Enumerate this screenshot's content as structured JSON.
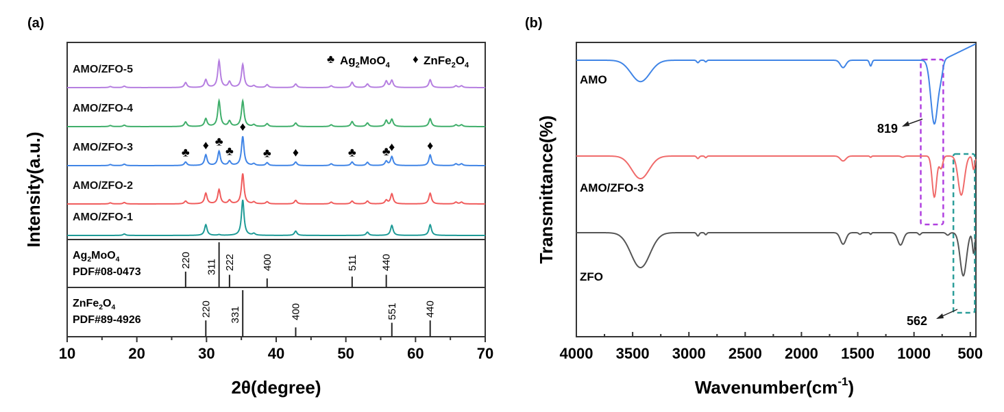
{
  "chart_data": [
    {
      "panel_label": "(a)",
      "type": "line",
      "title": "",
      "xlabel": "2θ(degree)",
      "ylabel": "Intensity(a.u.)",
      "xlim": [
        10,
        70
      ],
      "xticks": [
        10,
        20,
        30,
        40,
        50,
        60,
        70
      ],
      "grid": false,
      "legend": {
        "placement": "top-right",
        "entries": [
          {
            "symbol": "♣",
            "label_parts": [
              "Ag",
              "2",
              "MoO",
              "4"
            ],
            "phase": "Ag2MoO4"
          },
          {
            "symbol": "♦",
            "label_parts": [
              "ZnFe",
              "2",
              "O",
              "4"
            ],
            "phase": "ZnFe2O4"
          }
        ]
      },
      "series": [
        {
          "name": "AMO/ZFO-5",
          "color": "#b57ee0",
          "peaks": [
            [
              16.2,
              0.03
            ],
            [
              18.2,
              0.04
            ],
            [
              27.0,
              0.14
            ],
            [
              29.9,
              0.22
            ],
            [
              31.8,
              0.75
            ],
            [
              33.3,
              0.16
            ],
            [
              35.2,
              0.65
            ],
            [
              36.8,
              0.05
            ],
            [
              38.7,
              0.08
            ],
            [
              42.8,
              0.1
            ],
            [
              47.9,
              0.05
            ],
            [
              50.9,
              0.15
            ],
            [
              53.1,
              0.1
            ],
            [
              55.8,
              0.18
            ],
            [
              56.6,
              0.2
            ],
            [
              62.1,
              0.22
            ],
            [
              65.8,
              0.05
            ],
            [
              66.6,
              0.05
            ]
          ]
        },
        {
          "name": "AMO/ZFO-4",
          "color": "#3fae6a",
          "peaks": [
            [
              16.2,
              0.03
            ],
            [
              18.2,
              0.04
            ],
            [
              27.0,
              0.13
            ],
            [
              29.9,
              0.22
            ],
            [
              31.8,
              0.72
            ],
            [
              33.3,
              0.15
            ],
            [
              35.2,
              0.72
            ],
            [
              36.8,
              0.05
            ],
            [
              38.7,
              0.08
            ],
            [
              42.8,
              0.1
            ],
            [
              47.9,
              0.05
            ],
            [
              50.9,
              0.14
            ],
            [
              53.1,
              0.1
            ],
            [
              55.8,
              0.17
            ],
            [
              56.6,
              0.2
            ],
            [
              62.1,
              0.22
            ],
            [
              65.8,
              0.05
            ],
            [
              66.6,
              0.05
            ]
          ]
        },
        {
          "name": "AMO/ZFO-3",
          "color": "#3f84e6",
          "peaks": [
            [
              16.2,
              0.03
            ],
            [
              18.2,
              0.04
            ],
            [
              27.0,
              0.1
            ],
            [
              29.9,
              0.3
            ],
            [
              31.8,
              0.4
            ],
            [
              33.3,
              0.12
            ],
            [
              35.2,
              0.82
            ],
            [
              36.8,
              0.05
            ],
            [
              38.7,
              0.08
            ],
            [
              42.8,
              0.1
            ],
            [
              47.9,
              0.05
            ],
            [
              50.9,
              0.1
            ],
            [
              53.1,
              0.09
            ],
            [
              55.8,
              0.12
            ],
            [
              56.6,
              0.25
            ],
            [
              62.1,
              0.3
            ],
            [
              65.8,
              0.05
            ],
            [
              66.6,
              0.05
            ]
          ]
        },
        {
          "name": "AMO/ZFO-2",
          "color": "#f05b5b",
          "peaks": [
            [
              16.2,
              0.03
            ],
            [
              18.2,
              0.04
            ],
            [
              27.0,
              0.08
            ],
            [
              29.9,
              0.3
            ],
            [
              31.8,
              0.4
            ],
            [
              33.3,
              0.1
            ],
            [
              35.2,
              0.85
            ],
            [
              36.8,
              0.05
            ],
            [
              38.7,
              0.06
            ],
            [
              42.8,
              0.1
            ],
            [
              47.9,
              0.05
            ],
            [
              50.9,
              0.08
            ],
            [
              53.1,
              0.08
            ],
            [
              55.8,
              0.1
            ],
            [
              56.6,
              0.28
            ],
            [
              62.1,
              0.3
            ],
            [
              65.8,
              0.05
            ],
            [
              66.6,
              0.05
            ]
          ]
        },
        {
          "name": "AMO/ZFO-1",
          "color": "#1d9a96",
          "peaks": [
            [
              18.2,
              0.04
            ],
            [
              29.9,
              0.3
            ],
            [
              31.8,
              0.02
            ],
            [
              35.2,
              1.0
            ],
            [
              36.8,
              0.05
            ],
            [
              42.8,
              0.12
            ],
            [
              53.1,
              0.09
            ],
            [
              56.6,
              0.28
            ],
            [
              62.1,
              0.3
            ]
          ]
        }
      ],
      "markers": [
        {
          "symbol": "♣",
          "x": 27.0,
          "phase": "Ag2MoO4"
        },
        {
          "symbol": "♦",
          "x": 29.9,
          "phase": "ZnFe2O4"
        },
        {
          "symbol": "♣",
          "x": 31.8,
          "phase": "Ag2MoO4"
        },
        {
          "symbol": "♣",
          "x": 33.3,
          "phase": "Ag2MoO4"
        },
        {
          "symbol": "♦",
          "x": 35.2,
          "phase": "ZnFe2O4"
        },
        {
          "symbol": "♣",
          "x": 38.7,
          "phase": "Ag2MoO4"
        },
        {
          "symbol": "♦",
          "x": 42.8,
          "phase": "ZnFe2O4"
        },
        {
          "symbol": "♣",
          "x": 50.9,
          "phase": "Ag2MoO4"
        },
        {
          "symbol": "♣",
          "x": 55.8,
          "phase": "Ag2MoO4"
        },
        {
          "symbol": "♦",
          "x": 56.6,
          "phase": "ZnFe2O4"
        },
        {
          "symbol": "♦",
          "x": 62.1,
          "phase": "ZnFe2O4"
        }
      ],
      "references": [
        {
          "name_parts": [
            "Ag",
            "2",
            "MoO",
            "4"
          ],
          "pdf": "PDF#08-0473",
          "lines": [
            {
              "x": 27.0,
              "hkl": "220",
              "rel_intensity": 0.35
            },
            {
              "x": 31.8,
              "hkl": "311",
              "rel_intensity": 1.0
            },
            {
              "x": 33.3,
              "hkl": "222",
              "rel_intensity": 0.28
            },
            {
              "x": 38.7,
              "hkl": "400",
              "rel_intensity": 0.2
            },
            {
              "x": 50.9,
              "hkl": "511",
              "rel_intensity": 0.24
            },
            {
              "x": 55.8,
              "hkl": "440",
              "rel_intensity": 0.28
            }
          ]
        },
        {
          "name_parts": [
            "ZnFe",
            "2",
            "O",
            "4"
          ],
          "pdf": "PDF#89-4926",
          "lines": [
            {
              "x": 29.9,
              "hkl": "220",
              "rel_intensity": 0.35
            },
            {
              "x": 35.2,
              "hkl": "331",
              "rel_intensity": 1.0
            },
            {
              "x": 42.8,
              "hkl": "400",
              "rel_intensity": 0.2
            },
            {
              "x": 56.6,
              "hkl": "551",
              "rel_intensity": 0.3
            },
            {
              "x": 62.1,
              "hkl": "440",
              "rel_intensity": 0.35
            }
          ]
        }
      ]
    },
    {
      "panel_label": "(b)",
      "type": "line",
      "title": "",
      "xlabel_main": "Wavenumber(cm",
      "xlabel_sup": "-1",
      "xlabel_end": ")",
      "ylabel": "Transmittance(%)",
      "xlim": [
        4000,
        450
      ],
      "x_reversed": true,
      "xticks": [
        4000,
        3500,
        3000,
        2500,
        2000,
        1500,
        1000,
        500
      ],
      "grid": false,
      "series": [
        {
          "name": "AMO",
          "color": "#3f84e6",
          "baseline": [
            [
              4000,
              0.0
            ],
            [
              3800,
              0.05
            ],
            [
              3650,
              0.12
            ],
            [
              3400,
              0.0
            ],
            [
              3200,
              0.3
            ],
            [
              2950,
              0.55
            ],
            [
              2700,
              0.62
            ],
            [
              2000,
              0.66
            ],
            [
              1800,
              0.7
            ],
            [
              1200,
              0.74
            ],
            [
              950,
              0.76
            ],
            [
              900,
              0.77
            ],
            [
              500,
              0.0
            ],
            [
              450,
              0.42
            ]
          ],
          "dips": [
            [
              3430,
              0.52,
              120
            ],
            [
              2920,
              0.06,
              15
            ],
            [
              2850,
              0.04,
              12
            ],
            [
              1630,
              0.18,
              35
            ],
            [
              1385,
              0.14,
              15
            ],
            [
              819,
              1.55,
              45
            ],
            [
              760,
              0.25,
              25
            ]
          ]
        },
        {
          "name": "AMO/ZFO-3",
          "color": "#f06a6a",
          "baseline": [
            [
              4000,
              0.0
            ],
            [
              3700,
              0.0
            ],
            [
              3400,
              0.0
            ],
            [
              3200,
              0.2
            ],
            [
              2950,
              0.3
            ],
            [
              2800,
              0.36
            ],
            [
              450,
              0.4
            ]
          ],
          "dips": [
            [
              3430,
              0.55,
              110
            ],
            [
              2920,
              0.06,
              15
            ],
            [
              2850,
              0.04,
              12
            ],
            [
              1630,
              0.12,
              35
            ],
            [
              1385,
              0.03,
              10
            ],
            [
              1100,
              0.03,
              20
            ],
            [
              819,
              1.0,
              28
            ],
            [
              760,
              0.3,
              22
            ],
            [
              580,
              0.95,
              40
            ],
            [
              470,
              0.33,
              15
            ]
          ]
        },
        {
          "name": "ZFO",
          "color": "#555555",
          "baseline": [
            [
              4000,
              0.0
            ],
            [
              3700,
              0.0
            ],
            [
              3400,
              0.0
            ],
            [
              3200,
              0.25
            ],
            [
              2950,
              0.35
            ],
            [
              2750,
              0.42
            ],
            [
              450,
              0.46
            ]
          ],
          "dips": [
            [
              3430,
              0.85,
              120
            ],
            [
              2920,
              0.08,
              15
            ],
            [
              2850,
              0.05,
              12
            ],
            [
              1630,
              0.28,
              35
            ],
            [
              1480,
              0.04,
              15
            ],
            [
              1385,
              0.04,
              10
            ],
            [
              1120,
              0.3,
              35
            ],
            [
              950,
              0.05,
              15
            ],
            [
              700,
              0.06,
              20
            ],
            [
              562,
              1.05,
              40
            ],
            [
              470,
              0.5,
              15
            ]
          ]
        }
      ],
      "annotations": [
        {
          "text": "819",
          "x": 819,
          "series": "AMO"
        },
        {
          "text": "562",
          "x": 562,
          "series": "ZFO"
        }
      ],
      "highlight_boxes": [
        {
          "x_range": [
            940,
            740
          ],
          "color": "#b040e0",
          "series_range": [
            "AMO",
            "AMO/ZFO-3"
          ]
        },
        {
          "x_range": [
            650,
            460
          ],
          "color": "#2a9d99",
          "series_range": [
            "AMO/ZFO-3",
            "ZFO"
          ]
        }
      ]
    }
  ]
}
